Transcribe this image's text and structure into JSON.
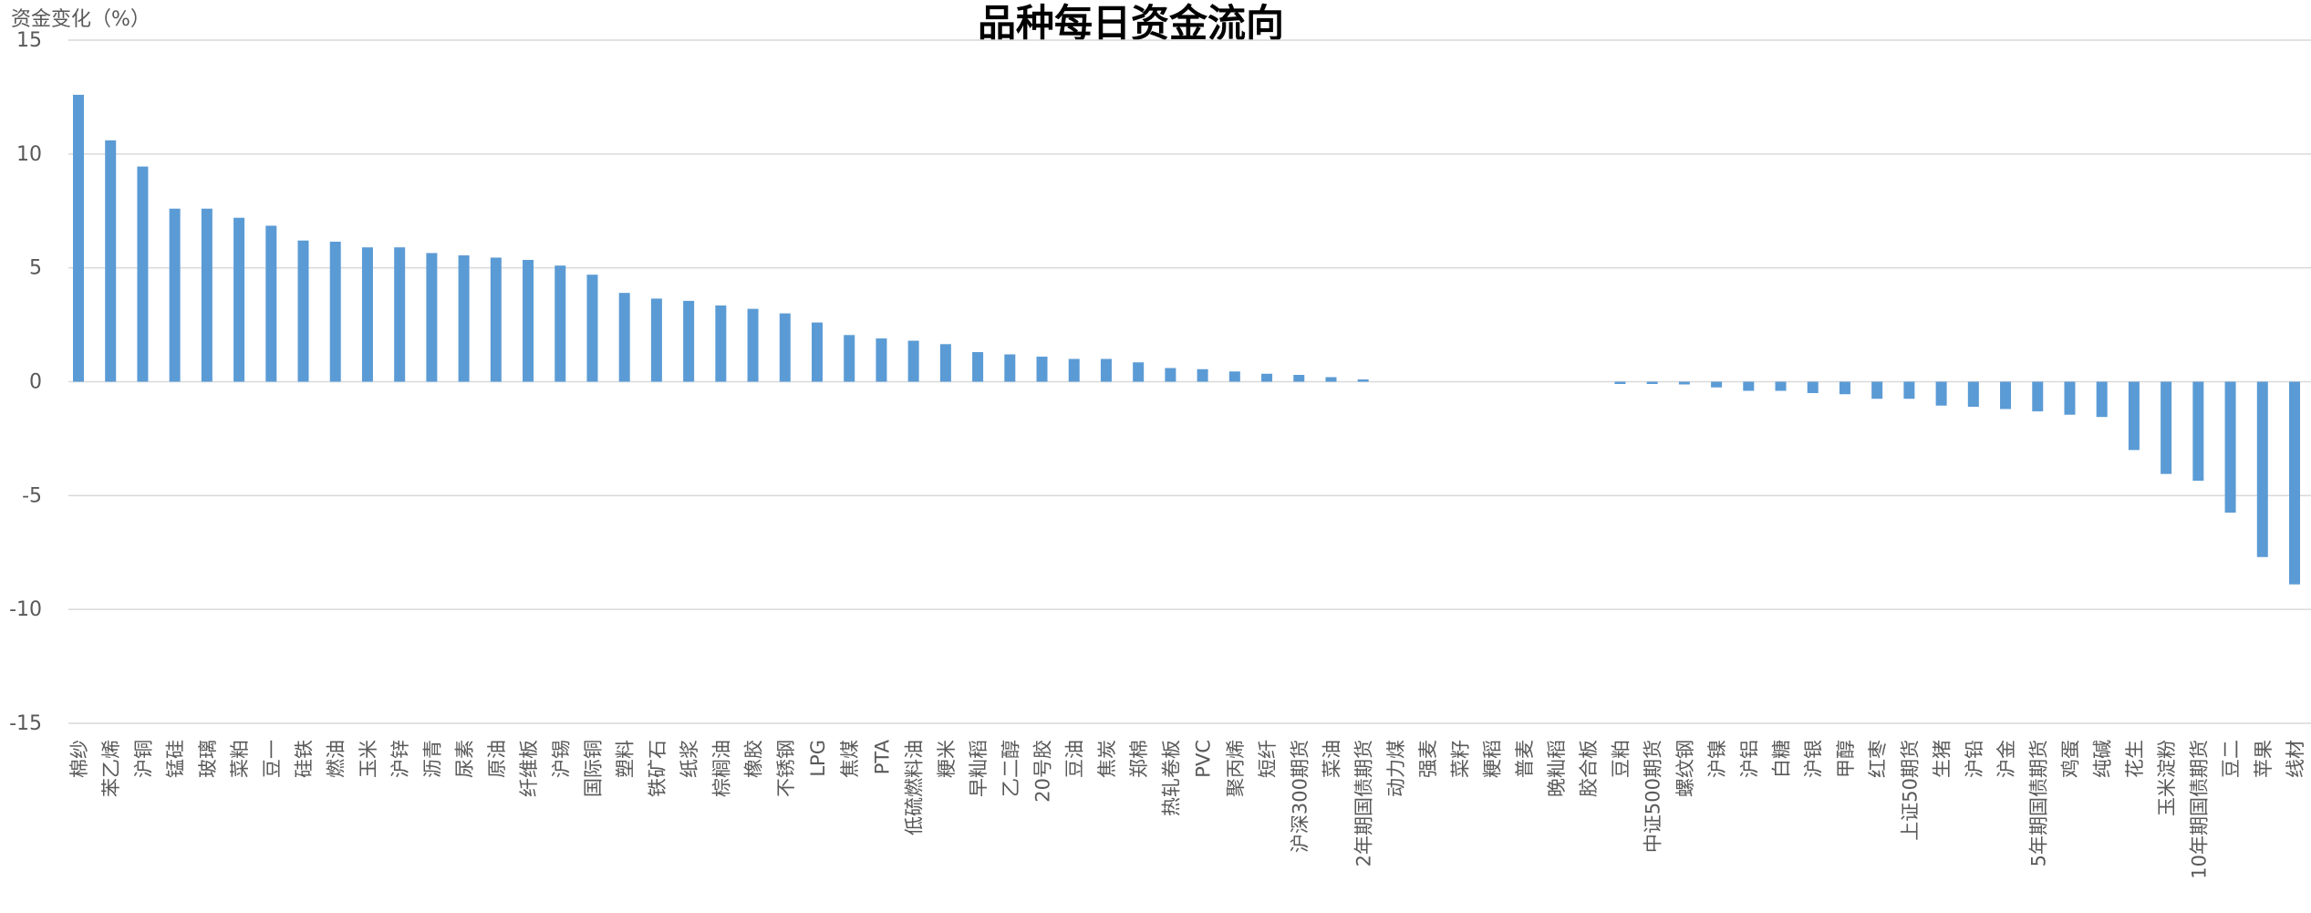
{
  "chart_data": {
    "type": "bar",
    "title": "品种每日资金流向",
    "ylabel": "资金变化（%）",
    "xlabel": "",
    "ylim": [
      -15,
      15
    ],
    "yticks": [
      15,
      10,
      5,
      0,
      -5,
      -10,
      -15
    ],
    "grid": true,
    "bar_color": "#5b9bd5",
    "grid_color": "#d9d9d9",
    "categories": [
      "棉纱",
      "苯乙烯",
      "沪铜",
      "锰硅",
      "玻璃",
      "菜粕",
      "豆一",
      "硅铁",
      "燃油",
      "玉米",
      "沪锌",
      "沥青",
      "尿素",
      "原油",
      "纤维板",
      "沪锡",
      "国际铜",
      "塑料",
      "铁矿石",
      "纸浆",
      "棕榈油",
      "橡胶",
      "不锈钢",
      "LPG",
      "焦煤",
      "PTA",
      "低硫燃料油",
      "粳米",
      "早籼稻",
      "乙二醇",
      "20号胶",
      "豆油",
      "焦炭",
      "郑棉",
      "热轧卷板",
      "PVC",
      "聚丙烯",
      "短纤",
      "沪深300期货",
      "菜油",
      "2年期国债期货",
      "动力煤",
      "强麦",
      "菜籽",
      "粳稻",
      "普麦",
      "晚籼稻",
      "胶合板",
      "豆粕",
      "中证500期货",
      "螺纹钢",
      "沪镍",
      "沪铝",
      "白糖",
      "沪银",
      "甲醇",
      "红枣",
      "上证50期货",
      "生猪",
      "沪铅",
      "沪金",
      "5年期国债期货",
      "鸡蛋",
      "纯碱",
      "花生",
      "玉米淀粉",
      "10年期国债期货",
      "豆二",
      "苹果",
      "线材"
    ],
    "values": [
      12.6,
      10.6,
      9.45,
      7.6,
      7.6,
      7.2,
      6.85,
      6.2,
      6.15,
      5.9,
      5.9,
      5.65,
      5.55,
      5.45,
      5.35,
      5.1,
      4.7,
      3.9,
      3.65,
      3.55,
      3.35,
      3.2,
      3.0,
      2.6,
      2.05,
      1.9,
      1.8,
      1.65,
      1.3,
      1.2,
      1.1,
      1.0,
      1.0,
      0.85,
      0.6,
      0.55,
      0.45,
      0.35,
      0.3,
      0.2,
      0.1,
      0,
      0,
      0,
      0,
      0,
      0,
      0,
      -0.1,
      -0.1,
      -0.12,
      -0.25,
      -0.4,
      -0.4,
      -0.5,
      -0.55,
      -0.75,
      -0.75,
      -1.05,
      -1.1,
      -1.2,
      -1.3,
      -1.45,
      -1.55,
      -3.0,
      -4.05,
      -4.35,
      -5.75,
      -7.7,
      -8.9
    ]
  }
}
